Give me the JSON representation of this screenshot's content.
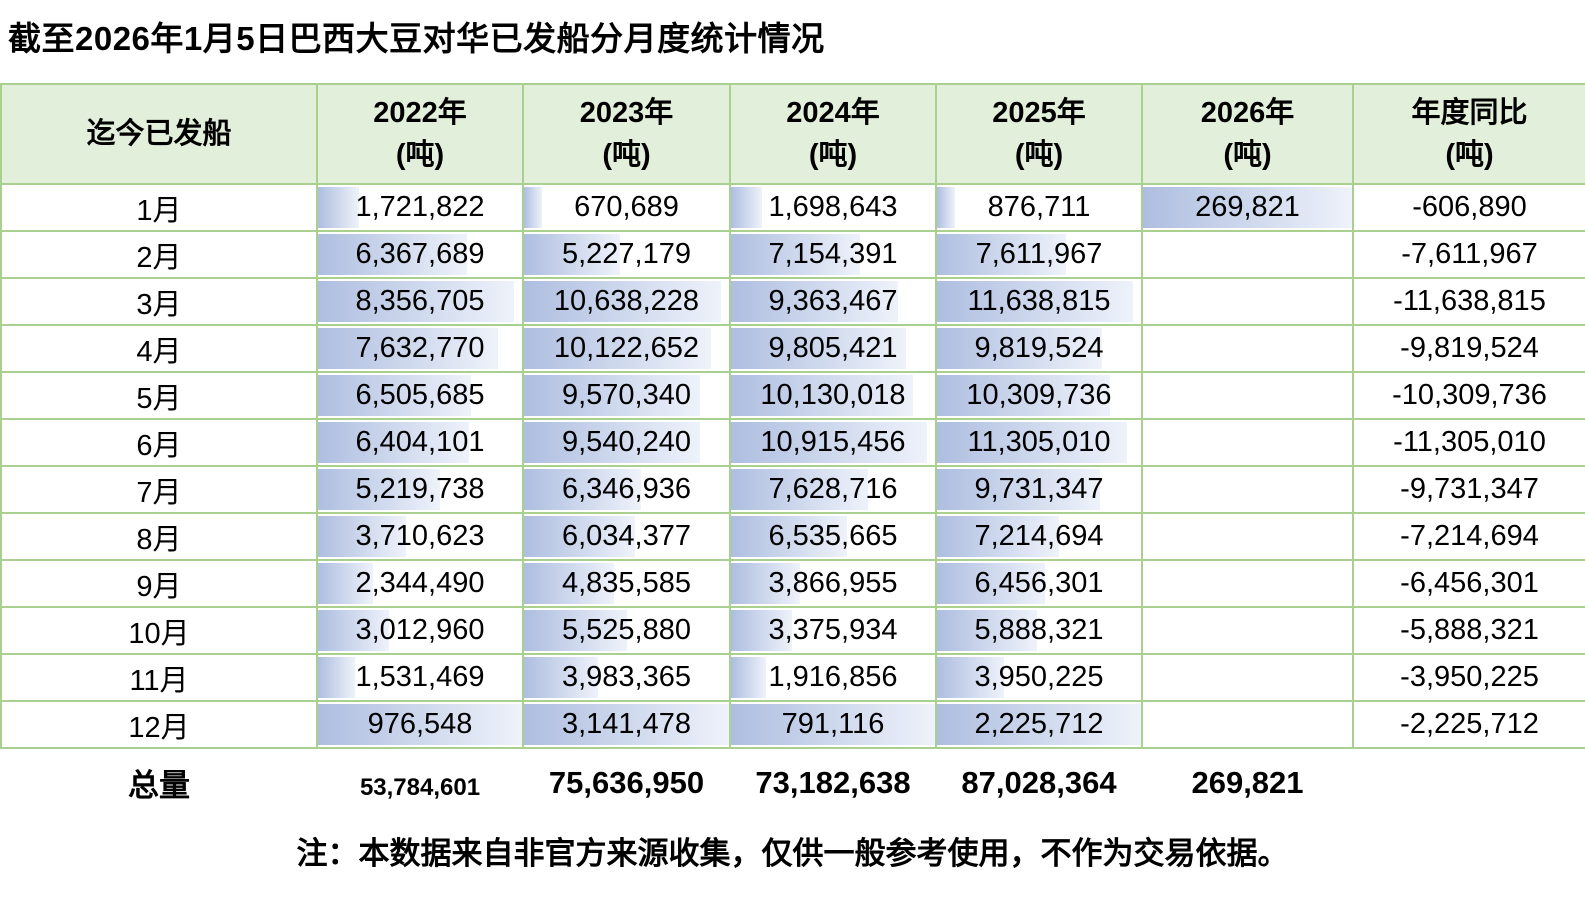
{
  "title": "截至2026年1月5日巴西大豆对华已发船分月度统计情况",
  "note": "注：本数据来自非官方来源收集，仅供一般参考使用，不作为交易依据。",
  "colors": {
    "header_bg": "#e2efda",
    "grid_border": "#a9d08e",
    "bar_start": "#aebee0",
    "bar_end": "#eef2fa"
  },
  "table": {
    "corner_header": "迄今已发船",
    "columns": [
      {
        "label": "2022年",
        "unit": "(吨)"
      },
      {
        "label": "2023年",
        "unit": "(吨)"
      },
      {
        "label": "2024年",
        "unit": "(吨)"
      },
      {
        "label": "2025年",
        "unit": "(吨)"
      },
      {
        "label": "2026年",
        "unit": "(吨)"
      },
      {
        "label": "年度同比",
        "unit": "(吨)"
      }
    ],
    "rows": [
      {
        "month": "1月",
        "values": [
          1721822,
          670689,
          1698643,
          876711,
          269821
        ],
        "yoy": -606890,
        "full_cols": [
          4
        ]
      },
      {
        "month": "2月",
        "values": [
          6367689,
          5227179,
          7154391,
          7611967,
          null
        ],
        "yoy": -7611967,
        "full_cols": []
      },
      {
        "month": "3月",
        "values": [
          8356705,
          10638228,
          9363467,
          11638815,
          null
        ],
        "yoy": -11638815,
        "full_cols": []
      },
      {
        "month": "4月",
        "values": [
          7632770,
          10122652,
          9805421,
          9819524,
          null
        ],
        "yoy": -9819524,
        "full_cols": []
      },
      {
        "month": "5月",
        "values": [
          6505685,
          9570340,
          10130018,
          10309736,
          null
        ],
        "yoy": -10309736,
        "full_cols": []
      },
      {
        "month": "6月",
        "values": [
          6404101,
          9540240,
          10915456,
          11305010,
          null
        ],
        "yoy": -11305010,
        "full_cols": []
      },
      {
        "month": "7月",
        "values": [
          5219738,
          6346936,
          7628716,
          9731347,
          null
        ],
        "yoy": -9731347,
        "full_cols": []
      },
      {
        "month": "8月",
        "values": [
          3710623,
          6034377,
          6535665,
          7214694,
          null
        ],
        "yoy": -7214694,
        "full_cols": []
      },
      {
        "month": "9月",
        "values": [
          2344490,
          4835585,
          3866955,
          6456301,
          null
        ],
        "yoy": -6456301,
        "full_cols": []
      },
      {
        "month": "10月",
        "values": [
          3012960,
          5525880,
          3375934,
          5888321,
          null
        ],
        "yoy": -5888321,
        "full_cols": []
      },
      {
        "month": "11月",
        "values": [
          1531469,
          3983365,
          1916856,
          3950225,
          null
        ],
        "yoy": -3950225,
        "full_cols": []
      },
      {
        "month": "12月",
        "values": [
          976548,
          3141478,
          791116,
          2225712,
          null
        ],
        "yoy": -2225712,
        "full_cols": [
          0,
          1,
          2,
          3
        ]
      }
    ],
    "totals": {
      "label": "总量",
      "values": [
        53784601,
        75636950,
        73182638,
        87028364,
        269821,
        null
      ]
    }
  }
}
